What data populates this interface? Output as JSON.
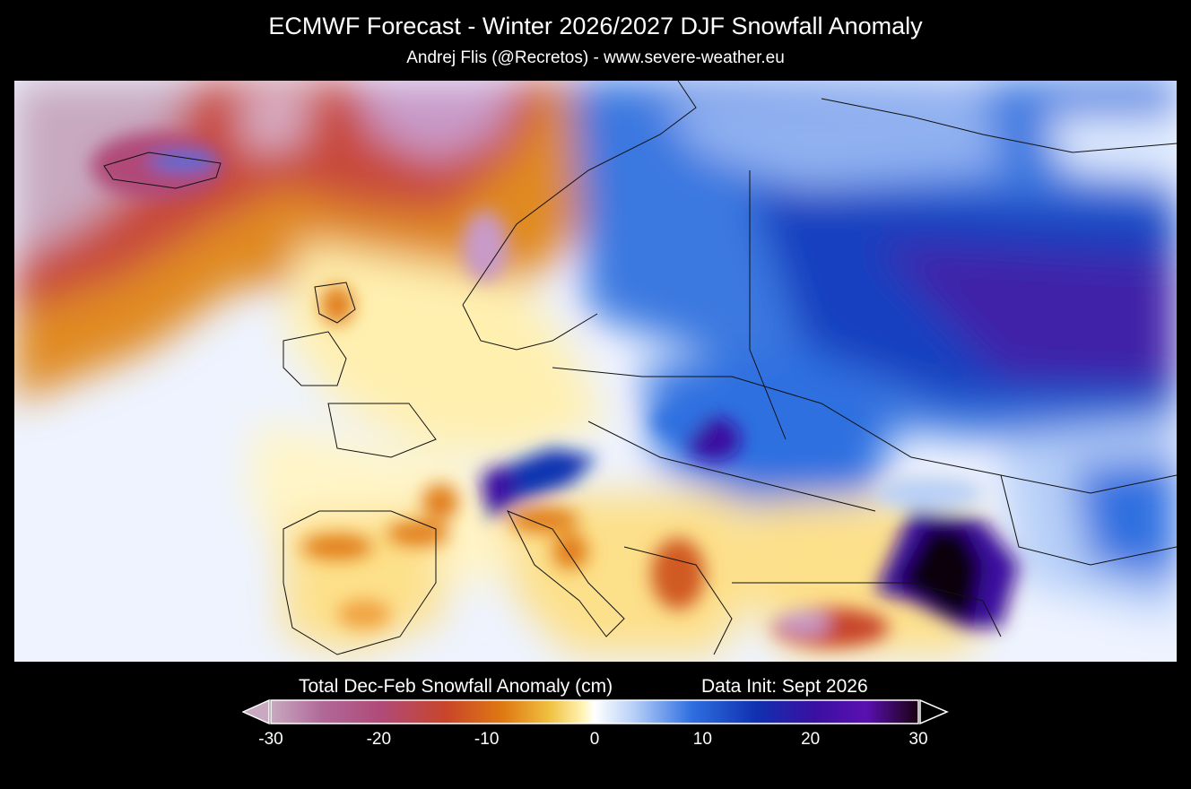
{
  "header": {
    "title": "ECMWF Forecast - Winter 2026/2027 DJF Snowfall Anomaly",
    "subtitle": "Andrej Flis (@Recretos) - www.severe-weather.eu"
  },
  "legend": {
    "title": "Total Dec-Feb Snowfall Anomaly (cm)",
    "data_init": "Data Init: Sept 2026",
    "ticks": [
      "-30",
      "-20",
      "-10",
      "0",
      "10",
      "20",
      "30"
    ],
    "range": [
      -30,
      30
    ],
    "colors": [
      "#c8a9c0",
      "#b04a78",
      "#c8452a",
      "#e07a12",
      "#f0c040",
      "#fff2b0",
      "#ffffff",
      "#b8d0f8",
      "#2f6fe0",
      "#1030b0",
      "#3a10a0",
      "#5a10b0",
      "#1a0010"
    ]
  }
}
